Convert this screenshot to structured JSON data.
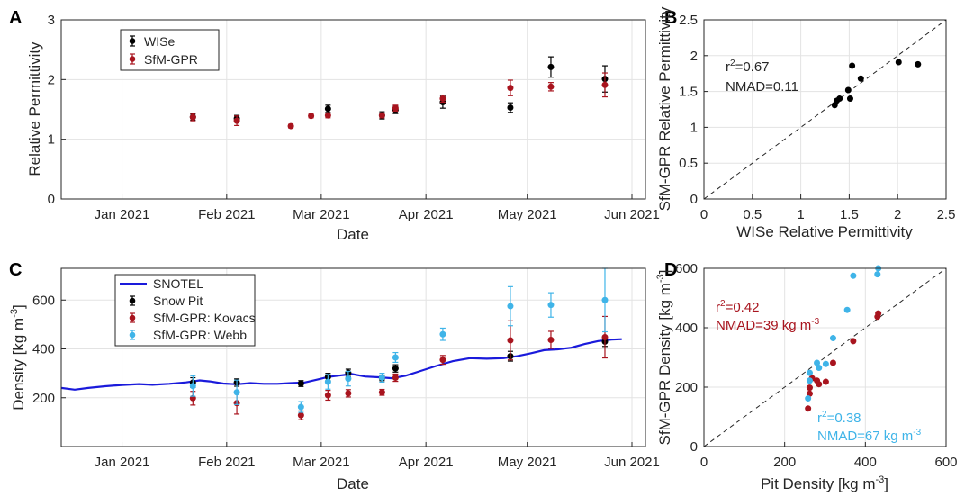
{
  "chart_data": [
    {
      "panel": "A",
      "type": "scatter",
      "xlabel": "Date",
      "ylabel": "Relative Permittivity",
      "xlim": [
        "2020-12-14",
        "2021-06-05"
      ],
      "ylim": [
        0,
        3
      ],
      "xticks": [
        {
          "date": "2021-01-01",
          "label": "Jan 2021"
        },
        {
          "date": "2021-02-01",
          "label": "Feb 2021"
        },
        {
          "date": "2021-03-01",
          "label": "Mar 2021"
        },
        {
          "date": "2021-04-01",
          "label": "Apr 2021"
        },
        {
          "date": "2021-05-01",
          "label": "May 2021"
        },
        {
          "date": "2021-06-01",
          "label": "Jun 2021"
        }
      ],
      "yticks": [
        "0",
        "1",
        "2",
        "3"
      ],
      "grid": true,
      "legend": "top-left",
      "series": [
        {
          "name": "WISe",
          "color": "#000000",
          "points": [
            {
              "x": "2021-01-22",
              "y": 1.37,
              "err": 0.05
            },
            {
              "x": "2021-02-04",
              "y": 1.35,
              "err": 0.05
            },
            {
              "x": "2021-03-03",
              "y": 1.51,
              "err": 0.06
            },
            {
              "x": "2021-03-19",
              "y": 1.4,
              "err": 0.06
            },
            {
              "x": "2021-03-23",
              "y": 1.49,
              "err": 0.06
            },
            {
              "x": "2021-04-06",
              "y": 1.62,
              "err": 0.1
            },
            {
              "x": "2021-04-26",
              "y": 1.53,
              "err": 0.08
            },
            {
              "x": "2021-05-08",
              "y": 2.21,
              "err": 0.17
            },
            {
              "x": "2021-05-24",
              "y": 2.01,
              "err": 0.22
            }
          ]
        },
        {
          "name": "SfM-GPR",
          "color": "#a8141e",
          "points": [
            {
              "x": "2021-01-22",
              "y": 1.37,
              "err": 0.06
            },
            {
              "x": "2021-02-04",
              "y": 1.31,
              "err": 0.08
            },
            {
              "x": "2021-02-20",
              "y": 1.22,
              "err": 0.03
            },
            {
              "x": "2021-02-26",
              "y": 1.39,
              "err": 0.03
            },
            {
              "x": "2021-03-03",
              "y": 1.4,
              "err": 0.04
            },
            {
              "x": "2021-03-19",
              "y": 1.4,
              "err": 0.04
            },
            {
              "x": "2021-03-23",
              "y": 1.52,
              "err": 0.05
            },
            {
              "x": "2021-04-06",
              "y": 1.68,
              "err": 0.06
            },
            {
              "x": "2021-04-26",
              "y": 1.86,
              "err": 0.13
            },
            {
              "x": "2021-05-08",
              "y": 1.88,
              "err": 0.07
            },
            {
              "x": "2021-05-24",
              "y": 1.91,
              "err": 0.2
            }
          ]
        }
      ]
    },
    {
      "panel": "B",
      "type": "scatter",
      "xlabel": "WISe Relative Permittivity",
      "ylabel": "SfM-GPR Relative Permittivity",
      "xlim": [
        0,
        2.5
      ],
      "ylim": [
        0,
        2.5
      ],
      "xticks": [
        "0",
        "0.5",
        "1",
        "1.5",
        "2",
        "2.5"
      ],
      "yticks": [
        "0",
        "0.5",
        "1",
        "1.5",
        "2",
        "2.5"
      ],
      "grid": true,
      "reference_line": "1:1 dashed",
      "annotation": {
        "r2_prefix": "r",
        "r2_sup": "2",
        "r2_value": "=0.67",
        "nmad": "NMAD=0.11"
      },
      "points": [
        {
          "x": 1.35,
          "y": 1.31
        },
        {
          "x": 1.37,
          "y": 1.37
        },
        {
          "x": 1.4,
          "y": 1.4
        },
        {
          "x": 1.51,
          "y": 1.4
        },
        {
          "x": 1.49,
          "y": 1.52
        },
        {
          "x": 1.53,
          "y": 1.86
        },
        {
          "x": 1.62,
          "y": 1.68
        },
        {
          "x": 2.01,
          "y": 1.91
        },
        {
          "x": 2.21,
          "y": 1.88
        }
      ]
    },
    {
      "panel": "C",
      "type": "line",
      "xlabel": "Date",
      "ylabel": "Density [kg m",
      "ylabel_sup": "-3",
      "ylabel_suffix": "]",
      "xlim": [
        "2020-12-14",
        "2021-06-05"
      ],
      "ylim": [
        0,
        730
      ],
      "xticks": [
        {
          "date": "2021-01-01",
          "label": "Jan 2021"
        },
        {
          "date": "2021-02-01",
          "label": "Feb 2021"
        },
        {
          "date": "2021-03-01",
          "label": "Mar 2021"
        },
        {
          "date": "2021-04-01",
          "label": "Apr 2021"
        },
        {
          "date": "2021-05-01",
          "label": "May 2021"
        },
        {
          "date": "2021-06-01",
          "label": "Jun 2021"
        }
      ],
      "yticks": [
        {
          "v": 200,
          "label": "200"
        },
        {
          "v": 400,
          "label": "400"
        },
        {
          "v": 600,
          "label": "600"
        }
      ],
      "grid": true,
      "legend": "top-left",
      "snotel": {
        "name": "SNOTEL",
        "color": "#1a1adb",
        "points": [
          {
            "x": "2020-12-14",
            "y": 240
          },
          {
            "x": "2020-12-18",
            "y": 233
          },
          {
            "x": "2020-12-22",
            "y": 240
          },
          {
            "x": "2020-12-27",
            "y": 247
          },
          {
            "x": "2021-01-01",
            "y": 252
          },
          {
            "x": "2021-01-06",
            "y": 256
          },
          {
            "x": "2021-01-10",
            "y": 253
          },
          {
            "x": "2021-01-15",
            "y": 257
          },
          {
            "x": "2021-01-20",
            "y": 263
          },
          {
            "x": "2021-01-24",
            "y": 271
          },
          {
            "x": "2021-01-27",
            "y": 267
          },
          {
            "x": "2021-01-31",
            "y": 258
          },
          {
            "x": "2021-02-04",
            "y": 255
          },
          {
            "x": "2021-02-08",
            "y": 260
          },
          {
            "x": "2021-02-12",
            "y": 257
          },
          {
            "x": "2021-02-16",
            "y": 257
          },
          {
            "x": "2021-02-20",
            "y": 260
          },
          {
            "x": "2021-02-24",
            "y": 262
          },
          {
            "x": "2021-02-28",
            "y": 275
          },
          {
            "x": "2021-03-03",
            "y": 285
          },
          {
            "x": "2021-03-07",
            "y": 292
          },
          {
            "x": "2021-03-10",
            "y": 297
          },
          {
            "x": "2021-03-14",
            "y": 287
          },
          {
            "x": "2021-03-18",
            "y": 284
          },
          {
            "x": "2021-03-22",
            "y": 280
          },
          {
            "x": "2021-03-26",
            "y": 290
          },
          {
            "x": "2021-03-30",
            "y": 308
          },
          {
            "x": "2021-04-04",
            "y": 330
          },
          {
            "x": "2021-04-09",
            "y": 350
          },
          {
            "x": "2021-04-14",
            "y": 362
          },
          {
            "x": "2021-04-19",
            "y": 360
          },
          {
            "x": "2021-04-24",
            "y": 362
          },
          {
            "x": "2021-04-28",
            "y": 370
          },
          {
            "x": "2021-05-02",
            "y": 382
          },
          {
            "x": "2021-05-06",
            "y": 395
          },
          {
            "x": "2021-05-10",
            "y": 398
          },
          {
            "x": "2021-05-14",
            "y": 405
          },
          {
            "x": "2021-05-18",
            "y": 420
          },
          {
            "x": "2021-05-22",
            "y": 432
          },
          {
            "x": "2021-05-26",
            "y": 438
          },
          {
            "x": "2021-05-29",
            "y": 440
          }
        ]
      },
      "series": [
        {
          "name": "Snow Pit",
          "color": "#000000",
          "points": [
            {
              "x": "2021-01-22",
              "y": 262,
              "err": 20
            },
            {
              "x": "2021-02-04",
              "y": 262,
              "err": 15
            },
            {
              "x": "2021-02-23",
              "y": 258,
              "err": 12
            },
            {
              "x": "2021-03-03",
              "y": 285,
              "err": 15
            },
            {
              "x": "2021-03-09",
              "y": 302,
              "err": 15
            },
            {
              "x": "2021-03-19",
              "y": 280,
              "err": 10
            },
            {
              "x": "2021-03-23",
              "y": 320,
              "err": 15
            },
            {
              "x": "2021-04-26",
              "y": 370,
              "err": 20
            },
            {
              "x": "2021-05-24",
              "y": 430,
              "err": 20
            }
          ]
        },
        {
          "name": "SfM-GPR: Kovacs",
          "color": "#a8141e",
          "points": [
            {
              "x": "2021-01-22",
              "y": 198,
              "err": 28
            },
            {
              "x": "2021-02-04",
              "y": 178,
              "err": 45
            },
            {
              "x": "2021-02-23",
              "y": 128,
              "err": 18
            },
            {
              "x": "2021-03-03",
              "y": 210,
              "err": 20
            },
            {
              "x": "2021-03-09",
              "y": 218,
              "err": 15
            },
            {
              "x": "2021-03-19",
              "y": 222,
              "err": 12
            },
            {
              "x": "2021-03-23",
              "y": 282,
              "err": 15
            },
            {
              "x": "2021-04-06",
              "y": 355,
              "err": 18
            },
            {
              "x": "2021-04-26",
              "y": 435,
              "err": 80
            },
            {
              "x": "2021-05-08",
              "y": 437,
              "err": 35
            },
            {
              "x": "2021-05-24",
              "y": 448,
              "err": 85
            }
          ]
        },
        {
          "name": "SfM-GPR: Webb",
          "color": "#3fb4e8",
          "points": [
            {
              "x": "2021-01-22",
              "y": 248,
              "err": 42
            },
            {
              "x": "2021-02-04",
              "y": 222,
              "err": 50
            },
            {
              "x": "2021-02-23",
              "y": 162,
              "err": 22
            },
            {
              "x": "2021-03-03",
              "y": 265,
              "err": 30
            },
            {
              "x": "2021-03-09",
              "y": 278,
              "err": 30
            },
            {
              "x": "2021-03-19",
              "y": 282,
              "err": 18
            },
            {
              "x": "2021-03-23",
              "y": 365,
              "err": 20
            },
            {
              "x": "2021-04-06",
              "y": 460,
              "err": 25
            },
            {
              "x": "2021-04-26",
              "y": 575,
              "err": 80
            },
            {
              "x": "2021-05-08",
              "y": 580,
              "err": 50
            },
            {
              "x": "2021-05-24",
              "y": 600,
              "err": 130
            }
          ]
        }
      ]
    },
    {
      "panel": "D",
      "type": "scatter",
      "xlabel": "Pit Density [kg m",
      "xlabel_sup": "-3",
      "xlabel_suffix": "]",
      "ylabel": "SfM-GPR Density [kg m",
      "ylabel_sup": "-3",
      "ylabel_suffix": "]",
      "xlim": [
        0,
        600
      ],
      "ylim": [
        0,
        600
      ],
      "xticks": [
        "0",
        "200",
        "400",
        "600"
      ],
      "yticks": [
        "0",
        "200",
        "400",
        "600"
      ],
      "grid": true,
      "reference_line": "1:1 dashed",
      "annotations": [
        {
          "color": "#a8141e",
          "r2_prefix": "r",
          "r2_sup": "2",
          "r2_value": "=0.42",
          "nmad_prefix": "NMAD=39 kg m",
          "nmad_sup": "-3"
        },
        {
          "color": "#3fb4e8",
          "r2_prefix": "r",
          "r2_sup": "2",
          "r2_value": "=0.38",
          "nmad_prefix": "NMAD=67 kg m",
          "nmad_sup": "-3"
        }
      ],
      "series": [
        {
          "name": "Kovacs",
          "color": "#a8141e",
          "points": [
            {
              "x": 258,
              "y": 128
            },
            {
              "x": 262,
              "y": 178
            },
            {
              "x": 262,
              "y": 198
            },
            {
              "x": 280,
              "y": 222
            },
            {
              "x": 285,
              "y": 210
            },
            {
              "x": 302,
              "y": 218
            },
            {
              "x": 320,
              "y": 282
            },
            {
              "x": 370,
              "y": 355
            },
            {
              "x": 430,
              "y": 437
            },
            {
              "x": 432,
              "y": 448
            },
            {
              "x": 268,
              "y": 230
            }
          ]
        },
        {
          "name": "Webb",
          "color": "#3fb4e8",
          "points": [
            {
              "x": 258,
              "y": 162
            },
            {
              "x": 262,
              "y": 222
            },
            {
              "x": 262,
              "y": 248
            },
            {
              "x": 280,
              "y": 282
            },
            {
              "x": 285,
              "y": 265
            },
            {
              "x": 302,
              "y": 278
            },
            {
              "x": 320,
              "y": 365
            },
            {
              "x": 355,
              "y": 460
            },
            {
              "x": 370,
              "y": 575
            },
            {
              "x": 430,
              "y": 580
            },
            {
              "x": 432,
              "y": 600
            }
          ]
        }
      ]
    }
  ]
}
